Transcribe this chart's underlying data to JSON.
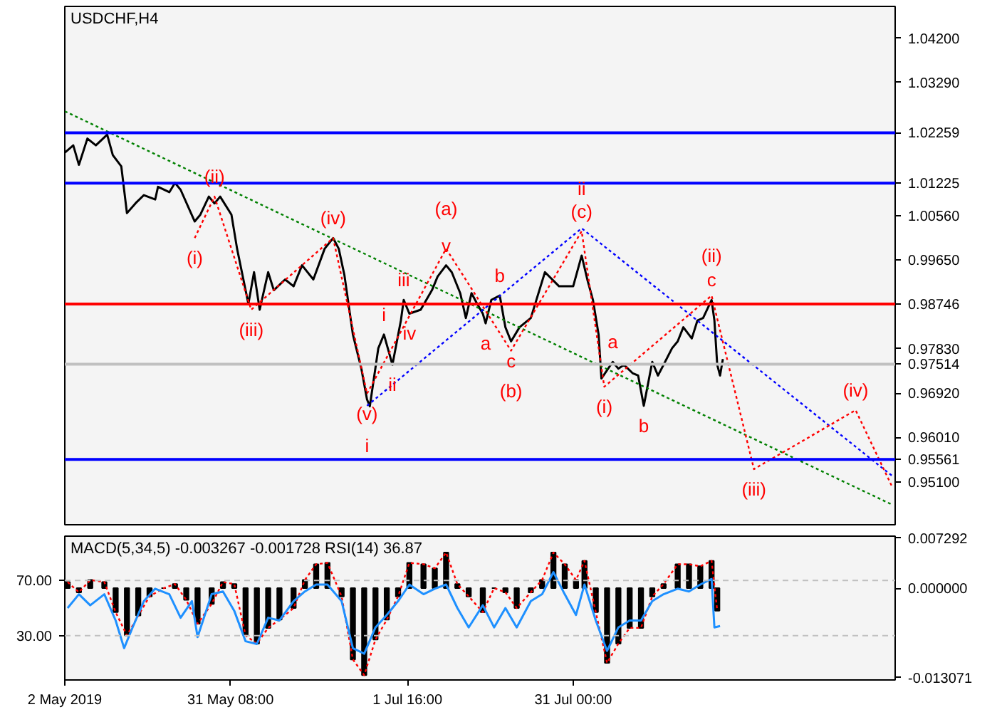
{
  "chart_data": [
    {
      "type": "line",
      "title": "USDCHF,H4",
      "xlim": [
        "2019-05-02",
        "2019-09-26"
      ],
      "ylim": [
        0.9422,
        1.0485
      ],
      "yticks": [
        {
          "value": 1.042,
          "label": "1.04200"
        },
        {
          "value": 1.0329,
          "label": "1.03290"
        },
        {
          "value": 1.0056,
          "label": "1.00560"
        },
        {
          "value": 0.9965,
          "label": "0.99650"
        },
        {
          "value": 0.9783,
          "label": "0.97830"
        },
        {
          "value": 0.9692,
          "label": "0.96920"
        },
        {
          "value": 0.9601,
          "label": "0.96010"
        },
        {
          "value": 0.951,
          "label": "0.95100"
        }
      ],
      "tick_labels": "y",
      "series": [
        {
          "color": "#000000",
          "x": [
            "2019-05-02",
            "2019-05-03T12:00",
            "2019-05-04T12:00",
            "2019-05-06",
            "2019-05-07T12:00",
            "2019-05-09T12:00",
            "2019-05-10T12:00",
            "2019-05-12",
            "2019-05-13",
            "2019-05-14T12:00",
            "2019-05-16",
            "2019-05-18",
            "2019-05-18T12:00",
            "2019-05-20T12:00",
            "2019-05-21T12:00",
            "2019-05-22T12:00",
            "2019-05-25",
            "2019-05-26",
            "2019-05-27T12:00",
            "2019-05-28T12:00",
            "2019-05-29T12:00",
            "2019-05-31T12:00",
            "2019-06-01T12:00",
            "2019-06-03T12:00",
            "2019-06-04T12:00",
            "2019-06-05T12:00",
            "2019-06-07",
            "2019-06-08",
            "2019-06-10",
            "2019-06-11T12:00",
            "2019-06-13",
            "2019-06-15",
            "2019-06-17",
            "2019-06-18T12:00",
            "2019-06-19T12:00",
            "2019-06-20T12:00",
            "2019-06-22",
            "2019-06-23T12:00",
            "2019-06-24T12:00",
            "2019-06-25",
            "2019-06-26T12:00",
            "2019-06-27T12:00",
            "2019-06-29",
            "2019-06-30T12:00",
            "2019-07-01",
            "2019-07-02",
            "2019-07-04",
            "2019-07-06",
            "2019-07-07",
            "2019-07-08T12:00",
            "2019-07-09T12:00",
            "2019-07-11",
            "2019-07-12",
            "2019-07-13",
            "2019-07-14",
            "2019-07-15",
            "2019-07-15T12:00",
            "2019-07-16T12:00",
            "2019-07-18",
            "2019-07-19",
            "2019-07-20",
            "2019-07-21T12:00",
            "2019-07-23T12:00",
            "2019-07-26",
            "2019-07-28T12:00",
            "2019-07-31",
            "2019-08-01T12:00",
            "2019-08-02T12:00",
            "2019-08-03T12:00",
            "2019-08-04T12:00",
            "2019-08-05",
            "2019-08-07",
            "2019-08-08",
            "2019-08-09",
            "2019-08-10T12:00",
            "2019-08-11T12:00",
            "2019-08-12T12:00",
            "2019-08-14",
            "2019-08-15",
            "2019-08-16",
            "2019-08-17T12:00",
            "2019-08-18T12:00",
            "2019-08-19T12:00",
            "2019-08-21",
            "2019-08-22",
            "2019-08-23",
            "2019-08-24T12:00",
            "2019-08-25",
            "2019-08-25T12:00",
            "2019-08-26",
            "2019-08-26T12:00"
          ],
          "values": [
            1.0185,
            1.02,
            1.016,
            1.0214,
            1.02,
            1.0222,
            1.018,
            1.0157,
            1.0061,
            1.0081,
            1.0098,
            1.0089,
            1.0115,
            1.0104,
            1.0123,
            1.0109,
            1.0044,
            1.0058,
            1.0095,
            1.0081,
            1.0095,
            1.0058,
            0.9988,
            0.9875,
            0.994,
            0.9863,
            0.994,
            0.9903,
            0.9925,
            0.9911,
            0.9954,
            0.9925,
            0.9988,
            1.001,
            0.9988,
            0.9934,
            0.9812,
            0.9742,
            0.9679,
            0.9665,
            0.9784,
            0.9812,
            0.975,
            0.9841,
            0.9883,
            0.9855,
            0.9863,
            0.9903,
            0.9931,
            0.9954,
            0.994,
            0.9897,
            0.9846,
            0.9897,
            0.9875,
            0.9855,
            0.9835,
            0.9883,
            0.9892,
            0.9827,
            0.9798,
            0.9827,
            0.9846,
            0.994,
            0.9911,
            0.9911,
            0.9974,
            0.9925,
            0.9883,
            0.9812,
            0.9722,
            0.9756,
            0.9742,
            0.975,
            0.9733,
            0.9728,
            0.9666,
            0.9756,
            0.9728,
            0.975,
            0.9784,
            0.9798,
            0.9827,
            0.9804,
            0.9841,
            0.9846,
            0.9883,
            0.9841,
            0.975,
            0.9728,
            0.9762
          ]
        },
        {
          "type": "line",
          "color": "#008000",
          "line_style": "dotted",
          "x": [
            "2019-05-02",
            "2019-09-25T12:00"
          ],
          "values": [
            1.027,
            0.9463
          ]
        },
        {
          "type": "line",
          "color": "#0000ff",
          "line_style": "dotted",
          "x": [
            "2019-06-24T12:00",
            "2019-08-01T12:00",
            "2019-09-25T12:00"
          ],
          "values": [
            0.9666,
            1.003,
            0.9522
          ]
        },
        {
          "type": "line",
          "color": "#ff0000",
          "line_style": "dotted",
          "x": [
            "2019-05-25",
            "2019-05-28T12:00",
            "2019-06-04",
            "2019-06-18T12:00",
            "2019-06-24T12:00",
            "2019-07-08T12:00",
            "2019-07-20",
            "2019-08-01T12:00",
            "2019-08-05T12:00",
            "2019-08-24T12:00",
            "2019-09-01",
            "2019-09-19",
            "2019-09-25T12:00"
          ],
          "values": [
            1.001,
            1.0095,
            0.9863,
            1.001,
            0.9691,
            0.9988,
            0.9779,
            1.0024,
            0.9705,
            0.9892,
            0.9536,
            0.9657,
            0.9499
          ]
        }
      ],
      "ref_lines": [
        {
          "axis": "y",
          "value": 1.02259,
          "label": "1.02259",
          "color": "#0000ff"
        },
        {
          "axis": "y",
          "value": 1.01225,
          "label": "1.01225",
          "color": "#0000ff"
        },
        {
          "axis": "y",
          "value": 0.98746,
          "label": "0.98746",
          "color": "#ff0000"
        },
        {
          "axis": "y",
          "value": 0.97514,
          "label": "0.97514",
          "color": "#c0c0c0"
        },
        {
          "axis": "y",
          "value": 0.95561,
          "label": "0.95561",
          "color": "#0000ff"
        }
      ],
      "annotations": [
        {
          "text": "(i)",
          "x": "2019-05-25",
          "y": 1.001
        },
        {
          "text": "(ii)",
          "x": "2019-05-28T12:00",
          "y": 1.0095
        },
        {
          "text": "(iii)",
          "x": "2019-06-04",
          "y": 0.9863
        },
        {
          "text": "(iv)",
          "x": "2019-06-18T12:00",
          "y": 1.001
        },
        {
          "text": "(v)",
          "x": "2019-06-24T12:00",
          "y": 0.9691
        },
        {
          "text": "i",
          "x": "2019-06-24T12:00",
          "y": 0.9666
        },
        {
          "text": "i",
          "x": "2019-06-27T12:00",
          "y": 0.9812
        },
        {
          "text": "ii",
          "x": "2019-06-29",
          "y": 0.975
        },
        {
          "text": "iii",
          "x": "2019-07-01",
          "y": 0.9883
        },
        {
          "text": "iv",
          "x": "2019-07-02",
          "y": 0.9855
        },
        {
          "text": "v",
          "x": "2019-07-08T12:00",
          "y": 0.9954
        },
        {
          "text": "(a)",
          "x": "2019-07-08T12:00",
          "y": 0.9988
        },
        {
          "text": "b",
          "x": "2019-07-18",
          "y": 0.9892
        },
        {
          "text": "a",
          "x": "2019-07-15T12:00",
          "y": 0.9835
        },
        {
          "text": "c",
          "x": "2019-07-20",
          "y": 0.9798
        },
        {
          "text": "(b)",
          "x": "2019-07-20",
          "y": 0.9779
        },
        {
          "text": "(c)",
          "x": "2019-08-01T12:00",
          "y": 1.0024
        },
        {
          "text": "ii",
          "x": "2019-08-01T12:00",
          "y": 1.003
        },
        {
          "text": "a",
          "x": "2019-08-07",
          "y": 0.9756
        },
        {
          "text": "(i)",
          "x": "2019-08-05T12:00",
          "y": 0.9705
        },
        {
          "text": "b",
          "x": "2019-08-12T12:00",
          "y": 0.9666
        },
        {
          "text": "c",
          "x": "2019-08-24T12:00",
          "y": 0.9883
        },
        {
          "text": "(ii)",
          "x": "2019-08-24T12:00",
          "y": 0.9892
        },
        {
          "text": "(iii)",
          "x": "2019-09-01",
          "y": 0.9536
        },
        {
          "text": "(iv)",
          "x": "2019-09-19",
          "y": 0.9657
        }
      ]
    },
    {
      "type": "bar",
      "title": "MACD(5,34,5) -0.003267 -0.001728 RSI(14) 36.87",
      "xlim": [
        "2019-05-02",
        "2019-09-26"
      ],
      "ylim": [
        -0.0134,
        0.0076
      ],
      "yticks": [
        {
          "value": 0.007292,
          "label": "0.007292"
        },
        {
          "value": 0,
          "label": "0.000000"
        },
        {
          "value": -0.013071,
          "label": "-0.013071"
        }
      ],
      "y2lim": [
        -2,
        102
      ],
      "y2ticks": [
        {
          "value": 70,
          "label": "70.00"
        },
        {
          "value": 30,
          "label": "30.00"
        }
      ],
      "xticks": [
        {
          "value": "2019-05-02",
          "label": "2 May 2019"
        },
        {
          "value": "2019-05-31T08:00",
          "label": "31 May 08:00"
        },
        {
          "value": "2019-07-01T16:00",
          "label": "1 Jul 16:00"
        },
        {
          "value": "2019-07-31",
          "label": "31 Jul 00:00"
        }
      ],
      "series": [
        {
          "type": "bar",
          "color": "#000000",
          "x": [
            "2019-05-02T12:00",
            "2019-05-04T12:00",
            "2019-05-06T12:00",
            "2019-05-09",
            "2019-05-11",
            "2019-05-13",
            "2019-05-15",
            "2019-05-17",
            "2019-05-19T12:00",
            "2019-05-21T12:00",
            "2019-05-23T12:00",
            "2019-05-25T12:00",
            "2019-05-28",
            "2019-05-30",
            "2019-06-01",
            "2019-06-03",
            "2019-06-05",
            "2019-06-07",
            "2019-06-09",
            "2019-06-11T12:00",
            "2019-06-13T12:00",
            "2019-06-15T12:00",
            "2019-06-17T12:00",
            "2019-06-20",
            "2019-06-22",
            "2019-06-24",
            "2019-06-26",
            "2019-06-28",
            "2019-06-30",
            "2019-07-02",
            "2019-07-04T12:00",
            "2019-07-06T12:00",
            "2019-07-08T12:00",
            "2019-07-10T12:00",
            "2019-07-12T12:00",
            "2019-07-15",
            "2019-07-17",
            "2019-07-19",
            "2019-07-21",
            "2019-07-23T12:00",
            "2019-07-25T12:00",
            "2019-07-27T12:00",
            "2019-07-29T12:00",
            "2019-07-31T12:00",
            "2019-08-02",
            "2019-08-04",
            "2019-08-06",
            "2019-08-08",
            "2019-08-10",
            "2019-08-12",
            "2019-08-14",
            "2019-08-16",
            "2019-08-18T12:00",
            "2019-08-20T12:00",
            "2019-08-22T12:00",
            "2019-08-24T12:00",
            "2019-08-25T12:00"
          ],
          "values": [
            0.0009,
            -0.0006,
            0.0012,
            0.0009,
            -0.0035,
            -0.0069,
            -0.004,
            -0.0012,
            0,
            0.0006,
            -0.0017,
            -0.0052,
            -0.0023,
            0.0009,
            0.0006,
            -0.0069,
            -0.0081,
            -0.0058,
            -0.0046,
            -0.0029,
            0.0012,
            0.0035,
            0.0037,
            -0.0012,
            -0.0104,
            -0.0127,
            -0.0075,
            -0.0046,
            -0.0012,
            0.0037,
            0.0035,
            0.0029,
            0.0052,
            0.0006,
            -0.0012,
            -0.0035,
            0,
            -0.0006,
            -0.0029,
            -0.0006,
            0.0012,
            0.0052,
            0.0035,
            0.0012,
            0.004,
            -0.0035,
            -0.0109,
            -0.0081,
            -0.0058,
            -0.0058,
            -0.0012,
            0.0006,
            0.0035,
            0.0035,
            0.0032,
            0.004,
            -0.0033
          ]
        },
        {
          "type": "line",
          "color": "#ff0000",
          "line_style": "dotted",
          "x": [
            "2019-05-02T12:00",
            "2019-05-04T12:00",
            "2019-05-06T12:00",
            "2019-05-09",
            "2019-05-11",
            "2019-05-13",
            "2019-05-15",
            "2019-05-17",
            "2019-05-19T12:00",
            "2019-05-21T12:00",
            "2019-05-23T12:00",
            "2019-05-25T12:00",
            "2019-05-28",
            "2019-05-30",
            "2019-06-01",
            "2019-06-03",
            "2019-06-05",
            "2019-06-07",
            "2019-06-09",
            "2019-06-11T12:00",
            "2019-06-13T12:00",
            "2019-06-15T12:00",
            "2019-06-17T12:00",
            "2019-06-20",
            "2019-06-22",
            "2019-06-24",
            "2019-06-26",
            "2019-06-28",
            "2019-06-30",
            "2019-07-02",
            "2019-07-04T12:00",
            "2019-07-06T12:00",
            "2019-07-08T12:00",
            "2019-07-10T12:00",
            "2019-07-12T12:00",
            "2019-07-15",
            "2019-07-17",
            "2019-07-19",
            "2019-07-21",
            "2019-07-23T12:00",
            "2019-07-25T12:00",
            "2019-07-27T12:00",
            "2019-07-29T12:00",
            "2019-07-31T12:00",
            "2019-08-02",
            "2019-08-04",
            "2019-08-06",
            "2019-08-08",
            "2019-08-10",
            "2019-08-12",
            "2019-08-14",
            "2019-08-16",
            "2019-08-18T12:00",
            "2019-08-20T12:00",
            "2019-08-22T12:00",
            "2019-08-24T12:00",
            "2019-08-25T12:00"
          ],
          "values": [
            0.0009,
            -0.0006,
            0.0012,
            0.0009,
            -0.0035,
            -0.0069,
            -0.004,
            -0.0012,
            0,
            0.0006,
            -0.0017,
            -0.0052,
            -0.0023,
            0.0009,
            0.0006,
            -0.0069,
            -0.0081,
            -0.0058,
            -0.0046,
            -0.0029,
            0.0012,
            0.0035,
            0.0037,
            -0.0012,
            -0.0104,
            -0.0127,
            -0.0075,
            -0.0046,
            -0.0012,
            0.0037,
            0.0035,
            0.0029,
            0.0052,
            0.0006,
            -0.0012,
            -0.0035,
            0,
            -0.0006,
            -0.0029,
            -0.0006,
            0.0012,
            0.0052,
            0.0035,
            0.0012,
            0.004,
            -0.0035,
            -0.0109,
            -0.0081,
            -0.0058,
            -0.0058,
            -0.0012,
            0.0006,
            0.0035,
            0.0035,
            0.0032,
            0.004,
            -0.0033
          ]
        },
        {
          "type": "line",
          "axis": "y2",
          "color": "#1e90ff",
          "x": [
            "2019-05-02T12:00",
            "2019-05-04T12:00",
            "2019-05-06T12:00",
            "2019-05-09",
            "2019-05-11",
            "2019-05-12T12:00",
            "2019-05-14",
            "2019-05-16",
            "2019-05-18",
            "2019-05-20T12:00",
            "2019-05-22T12:00",
            "2019-05-24T12:00",
            "2019-05-25T12:00",
            "2019-05-28",
            "2019-05-30",
            "2019-06-01",
            "2019-06-03",
            "2019-06-05",
            "2019-06-07",
            "2019-06-09",
            "2019-06-11T12:00",
            "2019-06-13T12:00",
            "2019-06-15T12:00",
            "2019-06-17T12:00",
            "2019-06-20",
            "2019-06-22",
            "2019-06-24",
            "2019-06-26",
            "2019-06-28",
            "2019-06-30",
            "2019-07-02",
            "2019-07-04T12:00",
            "2019-07-06T12:00",
            "2019-07-08T12:00",
            "2019-07-10T12:00",
            "2019-07-12T12:00",
            "2019-07-15",
            "2019-07-17",
            "2019-07-19",
            "2019-07-21",
            "2019-07-23T12:00",
            "2019-07-25T12:00",
            "2019-07-27T12:00",
            "2019-07-29T12:00",
            "2019-07-31T12:00",
            "2019-08-02",
            "2019-08-04",
            "2019-08-06",
            "2019-08-08",
            "2019-08-10",
            "2019-08-12",
            "2019-08-14",
            "2019-08-16",
            "2019-08-18T12:00",
            "2019-08-20T12:00",
            "2019-08-22T12:00",
            "2019-08-24T12:00",
            "2019-08-25",
            "2019-08-26"
          ],
          "values": [
            50,
            60,
            52,
            60,
            41,
            21,
            36,
            55,
            64,
            60,
            43,
            55,
            29,
            60,
            62,
            48,
            26,
            24,
            43,
            41,
            55,
            62,
            67,
            67,
            55,
            21,
            17,
            36,
            45,
            55,
            67,
            60,
            64,
            67,
            50,
            36,
            52,
            36,
            50,
            36,
            55,
            60,
            76,
            60,
            45,
            67,
            41,
            19,
            36,
            41,
            41,
            55,
            60,
            64,
            62,
            67,
            71,
            36,
            37
          ]
        }
      ],
      "ref_lines": [
        {
          "axis": "y2",
          "value": 70,
          "color": "#c0c0c0",
          "line_style": "dashed"
        },
        {
          "axis": "y2",
          "value": 30,
          "color": "#c0c0c0",
          "line_style": "dashed"
        }
      ]
    }
  ]
}
